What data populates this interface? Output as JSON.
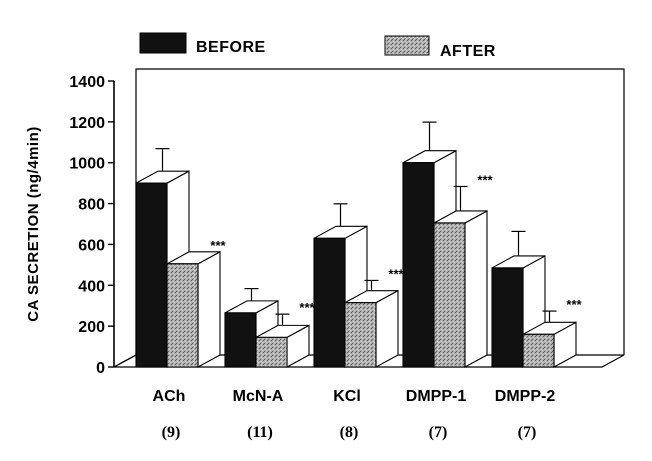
{
  "chart_data": {
    "type": "bar",
    "title": "",
    "xlabel": "",
    "ylabel": "CA SECRETION (ng/4min)",
    "ylim": [
      0,
      1400
    ],
    "yticks": [
      0,
      200,
      400,
      600,
      800,
      1000,
      1200,
      1400
    ],
    "grid": false,
    "legend_position": "top",
    "categories": [
      "ACh",
      "McN-A",
      "KCl",
      "DMPP-1",
      "DMPP-2"
    ],
    "category_n": [
      "(9)",
      "(11)",
      "(8)",
      "(7)",
      "(7)"
    ],
    "series": [
      {
        "name": "BEFORE",
        "values": [
          900,
          265,
          630,
          1000,
          485
        ],
        "errors": [
          110,
          60,
          110,
          140,
          120
        ]
      },
      {
        "name": "AFTER",
        "values": [
          505,
          145,
          315,
          705,
          160
        ],
        "errors": [
          0,
          55,
          50,
          120,
          55
        ]
      }
    ],
    "annotations": [
      {
        "category": "ACh",
        "series": "AFTER",
        "text": "***"
      },
      {
        "category": "McN-A",
        "series": "AFTER",
        "text": "***"
      },
      {
        "category": "KCl",
        "series": "AFTER",
        "text": "***"
      },
      {
        "category": "DMPP-1",
        "series": "AFTER",
        "text": "***"
      },
      {
        "category": "DMPP-2",
        "series": "AFTER",
        "text": "***"
      }
    ],
    "colors": {
      "before": "#111111",
      "after_fill": "#bdbdbd",
      "after_hatch": "#555555",
      "side": "#ffffff",
      "axis": "#000000"
    }
  }
}
